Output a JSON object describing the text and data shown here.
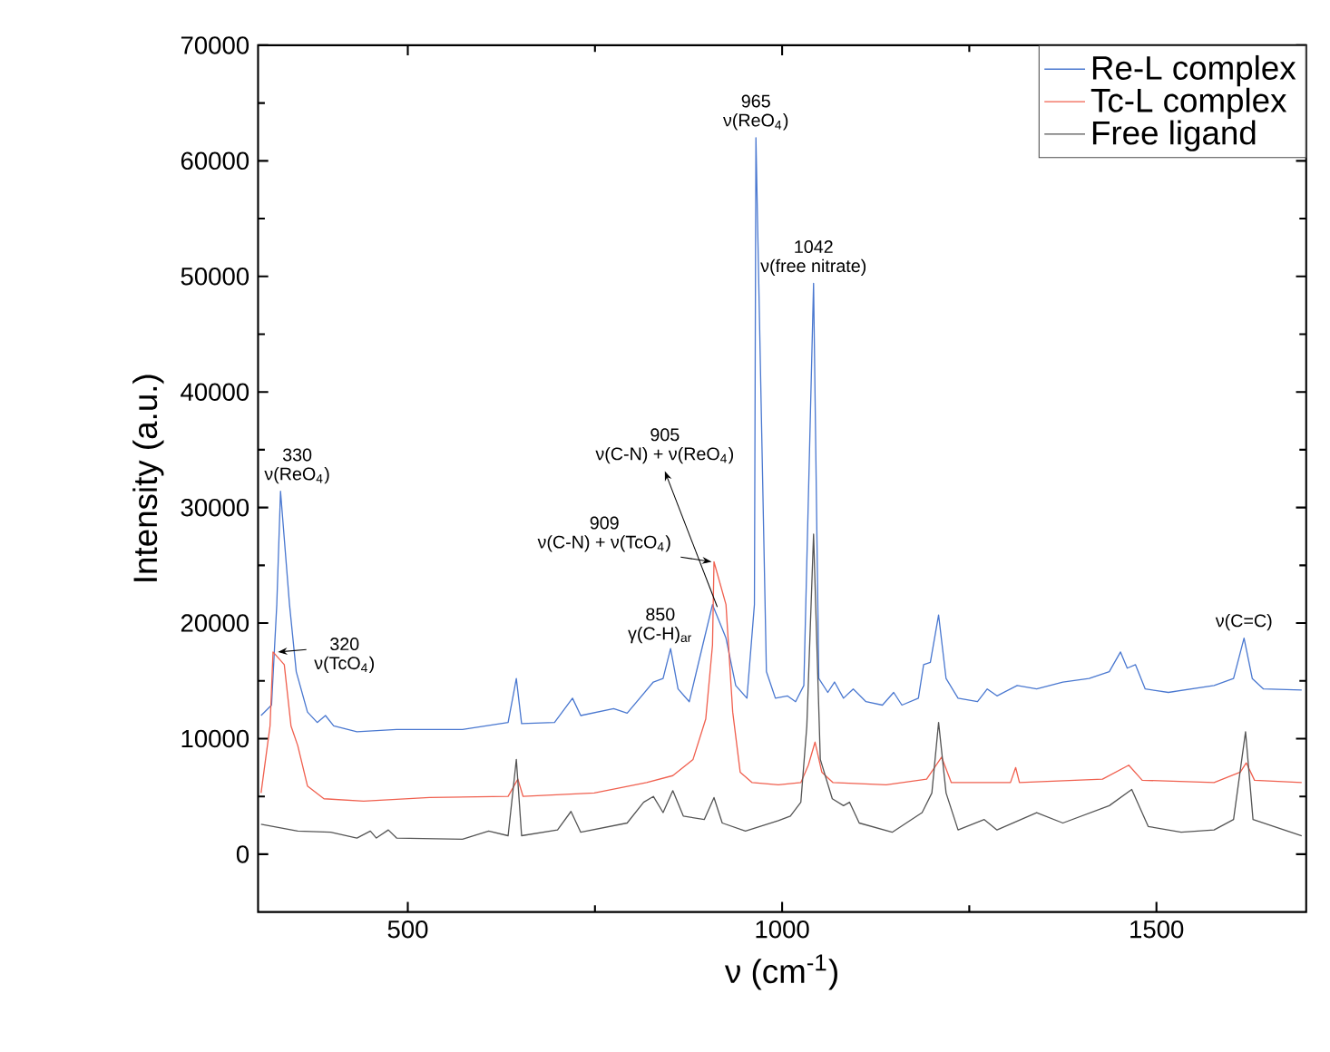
{
  "chart_data": {
    "type": "line",
    "xlabel": "ν (cm$^{-1}$)",
    "ylabel": "Intensity (a.u.)",
    "xlim": [
      300,
      1700
    ],
    "ylim": [
      -5000,
      70000
    ],
    "xticks": [
      500,
      1000,
      1500
    ],
    "yticks": [
      0,
      10000,
      20000,
      30000,
      40000,
      50000,
      60000,
      70000
    ],
    "legend": "top right",
    "series": [
      {
        "name": "Re-L complex",
        "color": "#4a78d0",
        "x": [
          304,
          318,
          325,
          330,
          342,
          351,
          366,
          379,
          390,
          401,
          432,
          485,
          573,
          634,
          645,
          652,
          696,
          720,
          731,
          775,
          793,
          828,
          841,
          851,
          861,
          876,
          894,
          907,
          925,
          938,
          953,
          963,
          965,
          979,
          991,
          1007,
          1018,
          1029,
          1042,
          1049,
          1061,
          1070,
          1082,
          1095,
          1112,
          1134,
          1149,
          1160,
          1182,
          1189,
          1198,
          1209,
          1219,
          1235,
          1261,
          1274,
          1287,
          1314,
          1340,
          1375,
          1410,
          1437,
          1452,
          1461,
          1472,
          1485,
          1516,
          1577,
          1603,
          1617,
          1628,
          1643,
          1694
        ],
        "values": [
          12000,
          12900,
          21600,
          31400,
          21600,
          15800,
          12300,
          11400,
          12000,
          11100,
          10600,
          10800,
          10800,
          11400,
          15200,
          11300,
          11400,
          13500,
          12000,
          12600,
          12200,
          14900,
          15200,
          17800,
          14300,
          13200,
          18100,
          21600,
          18700,
          14600,
          13500,
          21600,
          62000,
          15800,
          13500,
          13700,
          13200,
          14600,
          49400,
          15200,
          14000,
          14900,
          13500,
          14300,
          13200,
          12900,
          14000,
          12900,
          13500,
          16400,
          16600,
          20700,
          15200,
          13500,
          13200,
          14300,
          13700,
          14600,
          14300,
          14900,
          15200,
          15800,
          17500,
          16100,
          16400,
          14300,
          14000,
          14600,
          15200,
          18700,
          15200,
          14300,
          14200
        ]
      },
      {
        "name": "Tc-L complex",
        "color": "#f0604f",
        "x": [
          304,
          316,
          320,
          335,
          344,
          353,
          366,
          388,
          441,
          529,
          634,
          647,
          654,
          749,
          819,
          854,
          881,
          898,
          907,
          909,
          925,
          934,
          944,
          960,
          995,
          1025,
          1035,
          1044,
          1053,
          1068,
          1139,
          1193,
          1213,
          1226,
          1305,
          1312,
          1317,
          1428,
          1463,
          1481,
          1577,
          1612,
          1620,
          1631,
          1694
        ],
        "values": [
          5300,
          11100,
          17500,
          16400,
          11100,
          9400,
          5900,
          4800,
          4600,
          4900,
          5000,
          6500,
          5000,
          5300,
          6200,
          6800,
          8200,
          11700,
          18100,
          25300,
          21600,
          12300,
          7100,
          6200,
          6000,
          6200,
          7700,
          9700,
          7100,
          6200,
          6000,
          6500,
          8400,
          6200,
          6200,
          7500,
          6200,
          6500,
          7700,
          6400,
          6200,
          7100,
          7900,
          6400,
          6200
        ]
      },
      {
        "name": "Free ligand",
        "color": "#555555",
        "x": [
          304,
          353,
          397,
          432,
          450,
          458,
          474,
          485,
          573,
          608,
          634,
          645,
          652,
          700,
          718,
          731,
          793,
          815,
          828,
          841,
          854,
          868,
          896,
          909,
          920,
          951,
          995,
          1011,
          1025,
          1033,
          1042,
          1051,
          1067,
          1082,
          1090,
          1103,
          1147,
          1187,
          1200,
          1209,
          1219,
          1235,
          1270,
          1287,
          1340,
          1375,
          1437,
          1467,
          1489,
          1533,
          1577,
          1603,
          1619,
          1629,
          1694
        ],
        "values": [
          2600,
          2000,
          1900,
          1400,
          2000,
          1400,
          2100,
          1400,
          1300,
          2000,
          1600,
          8200,
          1600,
          2100,
          3700,
          1900,
          2700,
          4500,
          5000,
          3600,
          5500,
          3300,
          3000,
          4900,
          2700,
          2000,
          2900,
          3300,
          4500,
          11100,
          27700,
          8200,
          4800,
          4200,
          4500,
          2700,
          1900,
          3600,
          5300,
          11400,
          5300,
          2100,
          3000,
          2100,
          3600,
          2700,
          4200,
          5600,
          2400,
          1900,
          2100,
          3000,
          10600,
          3000,
          1600
        ]
      }
    ],
    "annotations": [
      {
        "text": "330",
        "x": 330,
        "y": 31400
      },
      {
        "text": "ν(ReO$_{4}$)",
        "x": 330,
        "y": 31400
      },
      "320",
      {
        "text": "ν(TcO$_{4}$)",
        "x": 320,
        "y": 17500
      },
      {
        "text": "850",
        "x": 850,
        "y": 17800
      },
      {
        "text": "γ(C-H)$_{ar}$",
        "x": 850,
        "y": 17800
      },
      "909",
      {
        "text": "ν(C-N) + ν(TcO$_{4}$)",
        "x": 909,
        "y": 25300
      },
      "905",
      {
        "text": "ν(C-N) + ν(ReO$_{4}$)",
        "x": 907,
        "y": 21600
      },
      {
        "text": "965",
        "x": 965,
        "y": 62000
      },
      {
        "text": "ν(ReO$_{4}$)",
        "x": 965,
        "y": 62000
      },
      {
        "text": "1042",
        "x": 1042,
        "y": 49400
      },
      {
        "text": "ν(free nitrate)",
        "x": 1042,
        "y": 49400
      },
      {
        "text": "ν(C=C)",
        "x": 1617,
        "y": 18700
      }
    ]
  }
}
